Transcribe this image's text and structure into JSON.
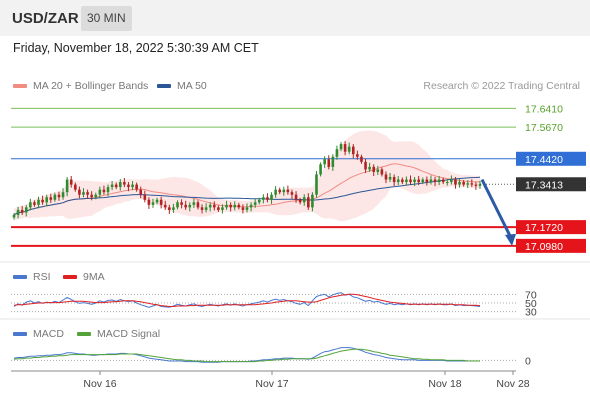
{
  "header": {
    "symbol": "USD/ZAR",
    "timeframe_button": "30 MIN"
  },
  "datetime": "Friday, November 18, 2022 5:30:39 AM CET",
  "copyright": "Research © 2022 Trading Central",
  "legends": {
    "price": [
      {
        "label": "MA 20 + Bollinger Bands",
        "color": "#f28b82"
      },
      {
        "label": "MA 50",
        "color": "#2b5797"
      }
    ],
    "rsi": [
      {
        "label": "RSI",
        "color": "#4a78d0"
      },
      {
        "label": "9MA",
        "color": "#e02020"
      }
    ],
    "macd": [
      {
        "label": "MACD",
        "color": "#4a78d0"
      },
      {
        "label": "MACD Signal",
        "color": "#52a33a"
      }
    ]
  },
  "colors": {
    "bullish": "#2e8b2e",
    "bearish": "#b22222",
    "resistance": "#7cbf5a",
    "pivot": "#2f6fd6",
    "support": "#e5141b",
    "arrow": "#2b5aa6",
    "current": "#333333"
  },
  "chart_data": [
    {
      "type": "candlestick",
      "ylim": [
        17.05,
        17.69
      ],
      "x_ticks": [
        "Nov 16",
        "Nov 17",
        "Nov 18",
        "Nov 28"
      ],
      "levels": [
        {
          "value": 17.641,
          "label": "17.6410",
          "kind": "resistance"
        },
        {
          "value": 17.567,
          "label": "17.5670",
          "kind": "resistance"
        },
        {
          "value": 17.442,
          "label": "17.4420",
          "kind": "pivot"
        },
        {
          "value": 17.172,
          "label": "17.1720",
          "kind": "support"
        },
        {
          "value": 17.098,
          "label": "17.0980",
          "kind": "support"
        }
      ],
      "current_price": {
        "value": 17.3413,
        "label": "17.3413"
      },
      "projection": {
        "from": 17.36,
        "to": 17.098
      },
      "candle_count": 115,
      "close": [
        17.22,
        17.24,
        17.23,
        17.25,
        17.27,
        17.26,
        17.28,
        17.27,
        17.29,
        17.28,
        17.3,
        17.29,
        17.31,
        17.36,
        17.34,
        17.32,
        17.3,
        17.31,
        17.3,
        17.29,
        17.3,
        17.32,
        17.31,
        17.33,
        17.34,
        17.33,
        17.35,
        17.34,
        17.33,
        17.34,
        17.32,
        17.3,
        17.28,
        17.26,
        17.27,
        17.28,
        17.26,
        17.25,
        17.24,
        17.25,
        17.27,
        17.26,
        17.25,
        17.26,
        17.27,
        17.25,
        17.24,
        17.25,
        17.26,
        17.25,
        17.24,
        17.25,
        17.26,
        17.25,
        17.26,
        17.25,
        17.24,
        17.25,
        17.26,
        17.27,
        17.28,
        17.29,
        17.28,
        17.3,
        17.32,
        17.31,
        17.32,
        17.31,
        17.3,
        17.28,
        17.27,
        17.29,
        17.25,
        17.3,
        17.38,
        17.42,
        17.44,
        17.41,
        17.45,
        17.48,
        17.5,
        17.47,
        17.49,
        17.46,
        17.45,
        17.43,
        17.4,
        17.41,
        17.39,
        17.4,
        17.38,
        17.36,
        17.37,
        17.35,
        17.36,
        17.35,
        17.36,
        17.35,
        17.36,
        17.35,
        17.36,
        17.35,
        17.36,
        17.35,
        17.36,
        17.35,
        17.35,
        17.36,
        17.34,
        17.35,
        17.34,
        17.345,
        17.34,
        17.335,
        17.3413
      ]
    },
    {
      "type": "line",
      "name": "RSI",
      "y_ticks": [
        "70",
        "50",
        "30"
      ],
      "ylim": [
        20,
        80
      ],
      "rsi": [
        42,
        48,
        45,
        52,
        55,
        50,
        53,
        49,
        52,
        50,
        54,
        51,
        57,
        63,
        58,
        53,
        49,
        51,
        49,
        47,
        50,
        55,
        52,
        56,
        57,
        54,
        58,
        55,
        53,
        55,
        50,
        46,
        43,
        40,
        43,
        46,
        42,
        41,
        40,
        43,
        47,
        45,
        43,
        46,
        48,
        44,
        42,
        45,
        47,
        45,
        43,
        46,
        48,
        45,
        48,
        45,
        43,
        46,
        48,
        50,
        52,
        55,
        52,
        56,
        59,
        56,
        58,
        55,
        53,
        49,
        47,
        51,
        44,
        55,
        65,
        68,
        70,
        64,
        69,
        72,
        74,
        68,
        70,
        64,
        62,
        58,
        54,
        56,
        52,
        54,
        50,
        47,
        49,
        46,
        48,
        46,
        48,
        46,
        48,
        46,
        48,
        46,
        48,
        46,
        48,
        46,
        46,
        48,
        44,
        46,
        44,
        45,
        44,
        43,
        42
      ],
      "ma9": [
        45,
        46,
        46,
        47,
        48,
        49,
        50,
        50,
        51,
        51,
        51,
        51,
        52,
        53,
        54,
        54,
        54,
        54,
        53,
        52,
        51,
        51,
        51,
        52,
        53,
        53,
        54,
        55,
        55,
        55,
        54,
        53,
        51,
        49,
        47,
        46,
        44,
        43,
        42,
        42,
        43,
        43,
        43,
        44,
        44,
        45,
        45,
        45,
        45,
        45,
        45,
        45,
        46,
        46,
        46,
        46,
        46,
        46,
        46,
        46,
        47,
        48,
        49,
        50,
        52,
        53,
        54,
        55,
        55,
        55,
        54,
        53,
        52,
        52,
        53,
        56,
        59,
        62,
        64,
        66,
        68,
        69,
        70,
        70,
        69,
        67,
        65,
        63,
        60,
        58,
        56,
        54,
        52,
        51,
        50,
        49,
        48,
        47,
        47,
        47,
        47,
        47,
        47,
        47,
        47,
        47,
        47,
        47,
        46,
        46,
        46,
        45,
        45,
        45,
        44
      ]
    },
    {
      "type": "line",
      "name": "MACD",
      "y_ticks": [
        "0"
      ],
      "ylim": [
        -0.025,
        0.035
      ],
      "macd": [
        0.004,
        0.005,
        0.005,
        0.006,
        0.007,
        0.007,
        0.008,
        0.008,
        0.009,
        0.009,
        0.01,
        0.01,
        0.011,
        0.013,
        0.013,
        0.012,
        0.011,
        0.011,
        0.01,
        0.009,
        0.009,
        0.01,
        0.01,
        0.011,
        0.011,
        0.011,
        0.012,
        0.012,
        0.011,
        0.011,
        0.01,
        0.008,
        0.006,
        0.004,
        0.003,
        0.002,
        0.001,
        0.0,
        -0.001,
        -0.001,
        -0.001,
        -0.001,
        -0.002,
        -0.002,
        -0.002,
        -0.002,
        -0.003,
        -0.003,
        -0.003,
        -0.003,
        -0.003,
        -0.002,
        -0.002,
        -0.002,
        -0.002,
        -0.002,
        -0.002,
        -0.002,
        -0.001,
        -0.001,
        0.0,
        0.001,
        0.001,
        0.002,
        0.003,
        0.003,
        0.004,
        0.004,
        0.004,
        0.003,
        0.003,
        0.003,
        0.002,
        0.004,
        0.008,
        0.012,
        0.015,
        0.016,
        0.018,
        0.02,
        0.022,
        0.022,
        0.022,
        0.021,
        0.019,
        0.017,
        0.014,
        0.012,
        0.01,
        0.009,
        0.007,
        0.005,
        0.004,
        0.003,
        0.002,
        0.001,
        0.001,
        0.001,
        0.001,
        0.0,
        0.0,
        0.0,
        0.0,
        0.0,
        0.0,
        0.0,
        -0.001,
        -0.001,
        -0.001,
        -0.001,
        -0.001,
        -0.001,
        -0.001,
        -0.001,
        -0.001
      ],
      "signal": [
        0.002,
        0.003,
        0.003,
        0.004,
        0.004,
        0.005,
        0.005,
        0.006,
        0.006,
        0.007,
        0.007,
        0.008,
        0.008,
        0.009,
        0.01,
        0.01,
        0.01,
        0.01,
        0.01,
        0.01,
        0.01,
        0.01,
        0.01,
        0.01,
        0.01,
        0.01,
        0.011,
        0.011,
        0.011,
        0.011,
        0.011,
        0.01,
        0.009,
        0.008,
        0.007,
        0.006,
        0.005,
        0.004,
        0.003,
        0.002,
        0.001,
        0.001,
        0.0,
        0.0,
        -0.001,
        -0.001,
        -0.001,
        -0.002,
        -0.002,
        -0.002,
        -0.002,
        -0.002,
        -0.002,
        -0.002,
        -0.002,
        -0.002,
        -0.002,
        -0.002,
        -0.002,
        -0.002,
        -0.001,
        -0.001,
        0.0,
        0.0,
        0.001,
        0.001,
        0.002,
        0.002,
        0.003,
        0.003,
        0.003,
        0.003,
        0.003,
        0.003,
        0.004,
        0.006,
        0.008,
        0.01,
        0.012,
        0.014,
        0.016,
        0.017,
        0.018,
        0.019,
        0.019,
        0.019,
        0.018,
        0.017,
        0.015,
        0.014,
        0.012,
        0.011,
        0.009,
        0.008,
        0.007,
        0.006,
        0.005,
        0.004,
        0.003,
        0.003,
        0.002,
        0.002,
        0.001,
        0.001,
        0.001,
        0.001,
        0.0,
        0.0,
        0.0,
        0.0,
        0.0,
        -0.001,
        -0.001,
        -0.001,
        -0.001
      ]
    }
  ]
}
